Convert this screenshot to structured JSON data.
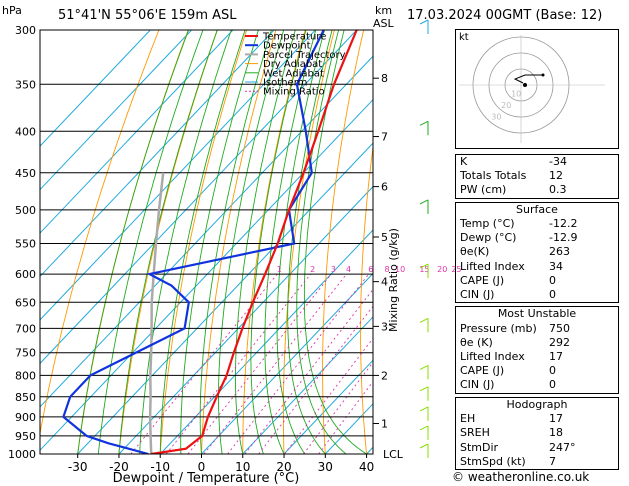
{
  "header": {
    "pressure_unit": "hPa",
    "location": "51°41'N  55°06'E  159m  ASL",
    "km_label": "km",
    "asl_label": "ASL",
    "datetime": "17.03.2024  00GMT  (Base: 12)"
  },
  "chart_data": {
    "type": "skew-t",
    "xlabel": "Dewpoint / Temperature (°C)",
    "y2label": "Mixing Ratio (g/kg)",
    "x_ticks": [
      -30,
      -20,
      -10,
      0,
      10,
      20,
      30,
      40
    ],
    "pressure_levels": [
      300,
      350,
      400,
      450,
      500,
      550,
      600,
      650,
      700,
      750,
      800,
      850,
      900,
      950,
      1000
    ],
    "km_ticks": [
      1,
      2,
      3,
      4,
      5,
      6,
      7,
      8
    ],
    "km_pressures": [
      917,
      800,
      696,
      613,
      540,
      468,
      406,
      344
    ],
    "lcl_label": "LCL",
    "mixing_ratio_labels": [
      "1",
      "2",
      "3",
      "4",
      "6",
      "8",
      "10",
      "15",
      "20",
      "25"
    ],
    "legend": [
      "Temperature",
      "Dewpoint",
      "Parcel Trajectory",
      "Dry Adiabat",
      "Wet Adiabat",
      "Isotherm",
      "Mixing Ratio"
    ],
    "colors": {
      "temperature": "#ee1111",
      "dewpoint": "#1133dd",
      "parcel": "#aaaaaa",
      "dry_adiabat": "#ff9900",
      "wet_adiabat": "#22aa22",
      "isotherm": "#22aadd",
      "mixing_ratio": "#dd33aa",
      "wind": "#88dd00"
    },
    "temperature": [
      {
        "p": 1000,
        "t": -12.2
      },
      {
        "p": 985,
        "t": -5
      },
      {
        "p": 950,
        "t": -4
      },
      {
        "p": 900,
        "t": -7
      },
      {
        "p": 850,
        "t": -9.5
      },
      {
        "p": 800,
        "t": -12
      },
      {
        "p": 750,
        "t": -15.5
      },
      {
        "p": 700,
        "t": -19
      },
      {
        "p": 650,
        "t": -22.5
      },
      {
        "p": 600,
        "t": -26
      },
      {
        "p": 550,
        "t": -30
      },
      {
        "p": 500,
        "t": -35
      },
      {
        "p": 450,
        "t": -40
      },
      {
        "p": 400,
        "t": -46
      },
      {
        "p": 350,
        "t": -53
      },
      {
        "p": 300,
        "t": -60
      }
    ],
    "dewpoint": [
      {
        "p": 1000,
        "t": -12.9
      },
      {
        "p": 970,
        "t": -25
      },
      {
        "p": 950,
        "t": -32
      },
      {
        "p": 900,
        "t": -42
      },
      {
        "p": 850,
        "t": -45
      },
      {
        "p": 800,
        "t": -45
      },
      {
        "p": 700,
        "t": -33
      },
      {
        "p": 650,
        "t": -38
      },
      {
        "p": 620,
        "t": -46
      },
      {
        "p": 600,
        "t": -54
      },
      {
        "p": 550,
        "t": -26
      },
      {
        "p": 500,
        "t": -35
      },
      {
        "p": 450,
        "t": -38
      },
      {
        "p": 400,
        "t": -49
      },
      {
        "p": 350,
        "t": -62
      },
      {
        "p": 300,
        "t": -68
      }
    ],
    "parcel": [
      {
        "p": 1000,
        "t": -12.2
      },
      {
        "p": 950,
        "t": -16.5
      },
      {
        "p": 900,
        "t": -21
      },
      {
        "p": 850,
        "t": -25.5
      },
      {
        "p": 800,
        "t": -30.5
      },
      {
        "p": 750,
        "t": -35.5
      },
      {
        "p": 700,
        "t": -41
      },
      {
        "p": 650,
        "t": -47
      },
      {
        "p": 600,
        "t": -53
      },
      {
        "p": 550,
        "t": -59.5
      },
      {
        "p": 500,
        "t": -66.5
      },
      {
        "p": 450,
        "t": -74
      }
    ],
    "hodograph": {
      "title": "kt",
      "ring_labels": [
        "10",
        "20",
        "30",
        "40"
      ]
    }
  },
  "indices": {
    "rows": [
      {
        "label": "K",
        "value": "-34"
      },
      {
        "label": "Totals Totals",
        "value": "12"
      },
      {
        "label": "PW (cm)",
        "value": "0.3"
      }
    ]
  },
  "surface": {
    "title": "Surface",
    "rows": [
      {
        "label": "Temp (°C)",
        "value": "-12.2"
      },
      {
        "label": "Dewp (°C)",
        "value": "-12.9"
      },
      {
        "label": "θe(K)",
        "value": "263"
      },
      {
        "label": "Lifted Index",
        "value": "34"
      },
      {
        "label": "CAPE (J)",
        "value": "0"
      },
      {
        "label": "CIN (J)",
        "value": "0"
      }
    ]
  },
  "most_unstable": {
    "title": "Most Unstable",
    "rows": [
      {
        "label": "Pressure (mb)",
        "value": "750"
      },
      {
        "label": "θe (K)",
        "value": "292"
      },
      {
        "label": "Lifted Index",
        "value": "17"
      },
      {
        "label": "CAPE (J)",
        "value": "0"
      },
      {
        "label": "CIN (J)",
        "value": "0"
      }
    ]
  },
  "hodograph_table": {
    "title": "Hodograph",
    "rows": [
      {
        "label": "EH",
        "value": "17"
      },
      {
        "label": "SREH",
        "value": "18"
      },
      {
        "label": "StmDir",
        "value": "247°"
      },
      {
        "label": "StmSpd (kt)",
        "value": "7"
      }
    ]
  },
  "footer": {
    "copyright": "© weatheronline.co.uk"
  }
}
